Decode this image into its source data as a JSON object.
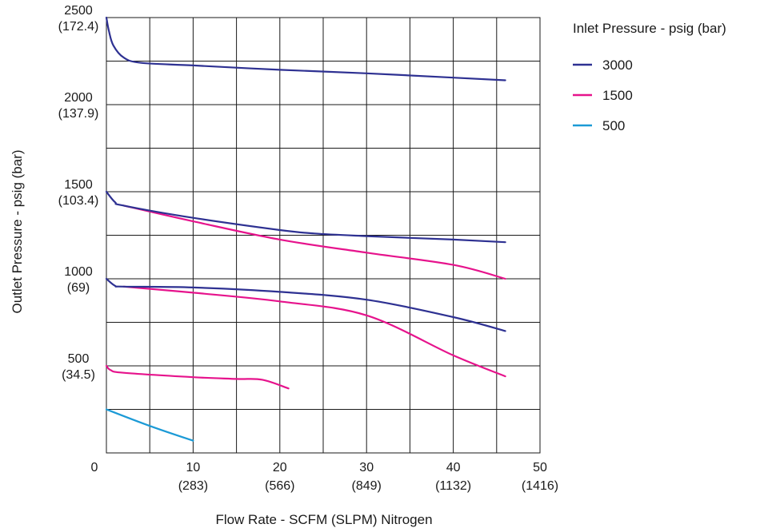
{
  "chart_data": {
    "type": "line",
    "xlabel": "Flow Rate - SCFM (SLPM) Nitrogen",
    "ylabel": "Outlet Pressure - psig (bar)",
    "xlim": [
      0,
      50
    ],
    "ylim": [
      0,
      2500
    ],
    "x_ticks": [
      {
        "value": 0,
        "label": "0",
        "sub": ""
      },
      {
        "value": 10,
        "label": "10",
        "sub": "(283)"
      },
      {
        "value": 20,
        "label": "20",
        "sub": "(566)"
      },
      {
        "value": 30,
        "label": "30",
        "sub": "(849)"
      },
      {
        "value": 40,
        "label": "40",
        "sub": "(1132)"
      },
      {
        "value": 50,
        "label": "50",
        "sub": "(1416)"
      }
    ],
    "y_ticks": [
      {
        "value": 2500,
        "label": "2500",
        "sub": "(172.4)"
      },
      {
        "value": 2000,
        "label": "2000",
        "sub": "(137.9)"
      },
      {
        "value": 1500,
        "label": "1500",
        "sub": "(103.4)"
      },
      {
        "value": 1000,
        "label": "1000",
        "sub": "(69)"
      },
      {
        "value": 500,
        "label": "500",
        "sub": "(34.5)"
      }
    ],
    "grid": true,
    "legend": {
      "title": "Inlet Pressure - psig (bar)",
      "position": "top-right",
      "entries": [
        {
          "label": "3000",
          "color": "#2e3192"
        },
        {
          "label": "1500",
          "color": "#e6138c"
        },
        {
          "label": "500",
          "color": "#1b9ad6"
        }
      ]
    },
    "series": [
      {
        "legend": "3000",
        "color": "#2e3192",
        "points": [
          [
            0,
            2500
          ],
          [
            0.3,
            2420
          ],
          [
            0.8,
            2340
          ],
          [
            2,
            2270
          ],
          [
            4,
            2240
          ],
          [
            10,
            2225
          ],
          [
            20,
            2200
          ],
          [
            30,
            2180
          ],
          [
            40,
            2155
          ],
          [
            46,
            2140
          ]
        ]
      },
      {
        "legend": "3000",
        "color": "#2e3192",
        "points": [
          [
            0,
            1500
          ],
          [
            1,
            1440
          ],
          [
            2,
            1420
          ],
          [
            10,
            1350
          ],
          [
            20,
            1280
          ],
          [
            24,
            1260
          ],
          [
            30,
            1245
          ],
          [
            40,
            1225
          ],
          [
            46,
            1210
          ]
        ]
      },
      {
        "legend": "3000",
        "color": "#2e3192",
        "points": [
          [
            0,
            1000
          ],
          [
            1,
            960
          ],
          [
            2,
            955
          ],
          [
            10,
            950
          ],
          [
            20,
            925
          ],
          [
            30,
            880
          ],
          [
            40,
            780
          ],
          [
            46,
            700
          ]
        ]
      },
      {
        "legend": "1500",
        "color": "#e6138c",
        "points": [
          [
            2,
            1420
          ],
          [
            10,
            1330
          ],
          [
            20,
            1225
          ],
          [
            30,
            1150
          ],
          [
            40,
            1080
          ],
          [
            46,
            1000
          ]
        ]
      },
      {
        "legend": "1500",
        "color": "#e6138c",
        "points": [
          [
            2,
            955
          ],
          [
            10,
            920
          ],
          [
            20,
            870
          ],
          [
            30,
            790
          ],
          [
            40,
            560
          ],
          [
            46,
            440
          ]
        ]
      },
      {
        "legend": "1500",
        "color": "#e6138c",
        "points": [
          [
            0,
            500
          ],
          [
            0.5,
            475
          ],
          [
            2,
            460
          ],
          [
            10,
            435
          ],
          [
            15,
            425
          ],
          [
            18,
            420
          ],
          [
            21,
            370
          ]
        ]
      },
      {
        "legend": "500",
        "color": "#1b9ad6",
        "points": [
          [
            0,
            250
          ],
          [
            5,
            155
          ],
          [
            10,
            70
          ]
        ]
      }
    ]
  }
}
